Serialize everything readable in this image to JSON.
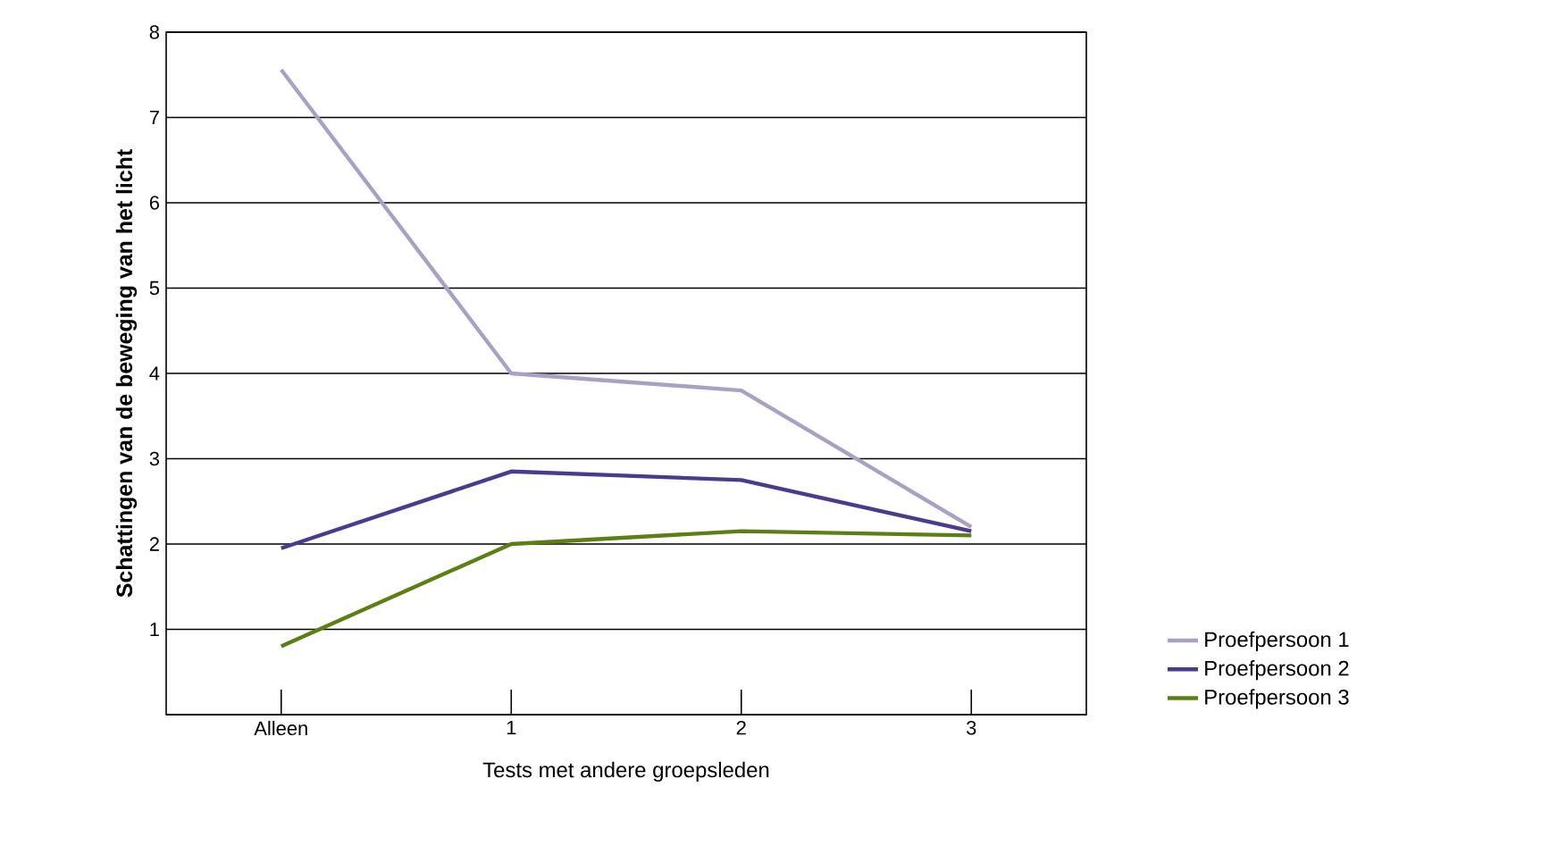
{
  "chart_data": {
    "type": "line",
    "xlabel": "Tests met andere groepsleden",
    "ylabel": "Schattingen van de beweging van het licht",
    "categories": [
      "Alleen",
      "1",
      "2",
      "3"
    ],
    "series": [
      {
        "name": "Proefpersoon 1",
        "color": "#aaa0c4",
        "values": [
          7.56,
          4.0,
          3.8,
          2.2
        ]
      },
      {
        "name": "Proefpersoon 2",
        "color": "#4b3a8e",
        "values": [
          1.95,
          2.85,
          2.75,
          2.15
        ]
      },
      {
        "name": "Proefpersoon 3",
        "color": "#5b7f12",
        "values": [
          0.8,
          2.0,
          2.15,
          2.1
        ]
      }
    ],
    "ylim": [
      0,
      8
    ],
    "yticks": [
      {
        "value": 0,
        "label": null
      },
      1,
      2,
      3,
      4,
      5,
      6,
      7,
      8
    ],
    "grid": "y",
    "legend": "right",
    "marker": "none",
    "line_style": "solid"
  }
}
